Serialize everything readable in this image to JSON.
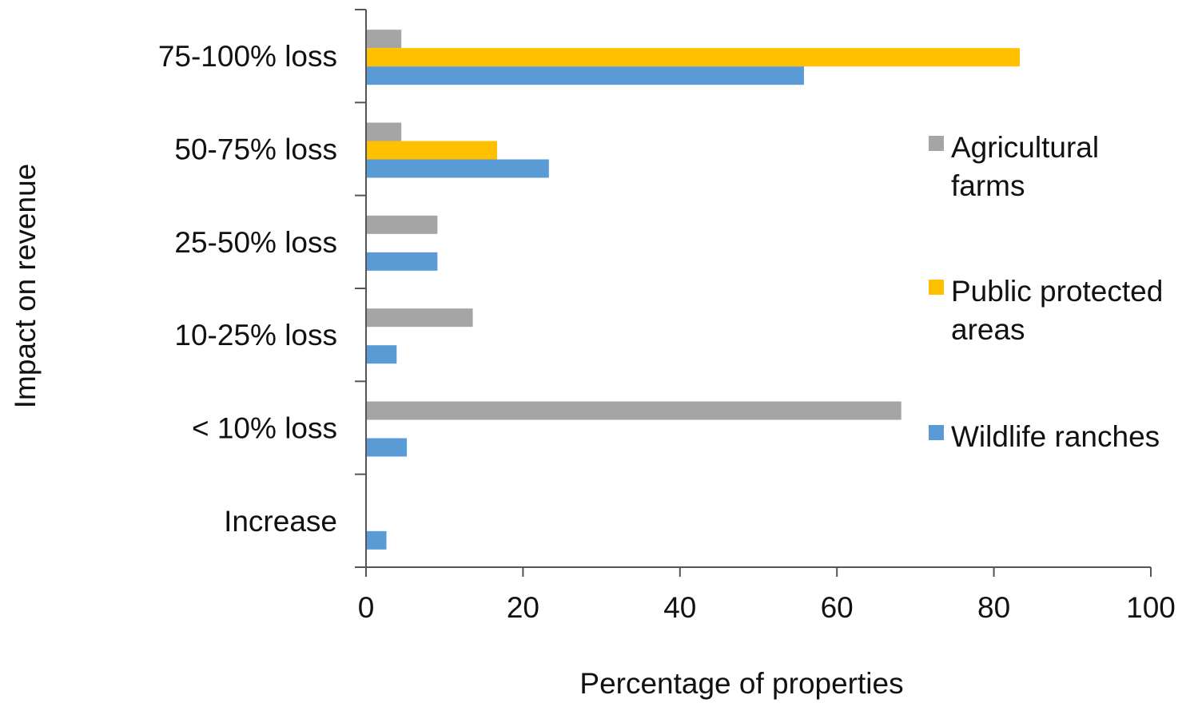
{
  "chart_data": {
    "type": "bar",
    "orientation": "horizontal",
    "categories": [
      "75-100% loss",
      "50-75% loss",
      "25-50% loss",
      "10-25% loss",
      "< 10% loss",
      "Increase"
    ],
    "series": [
      {
        "name": "Agricultural farms",
        "color": "#a5a5a5",
        "values": [
          4.5,
          4.5,
          9.1,
          13.6,
          68.2,
          0
        ]
      },
      {
        "name": "Public protected areas",
        "color": "#ffc000",
        "values": [
          83.3,
          16.7,
          0,
          0,
          0,
          0
        ]
      },
      {
        "name": "Wildlife ranches",
        "color": "#5b9bd5",
        "values": [
          55.8,
          23.3,
          9.1,
          3.9,
          5.2,
          2.6
        ]
      }
    ],
    "xlabel": "Percentage of properties",
    "ylabel": "Impact on revenue",
    "xlim": [
      0,
      100
    ],
    "xticks": [
      0,
      20,
      40,
      60,
      80,
      100
    ],
    "legend": {
      "position": "right",
      "entries": [
        {
          "lines": [
            "Agricultural",
            "farms"
          ],
          "color": "#a5a5a5"
        },
        {
          "lines": [
            "Public protected",
            "areas"
          ],
          "color": "#ffc000"
        },
        {
          "lines": [
            "Wildlife ranches"
          ],
          "color": "#5b9bd5"
        }
      ]
    },
    "grid": false
  }
}
